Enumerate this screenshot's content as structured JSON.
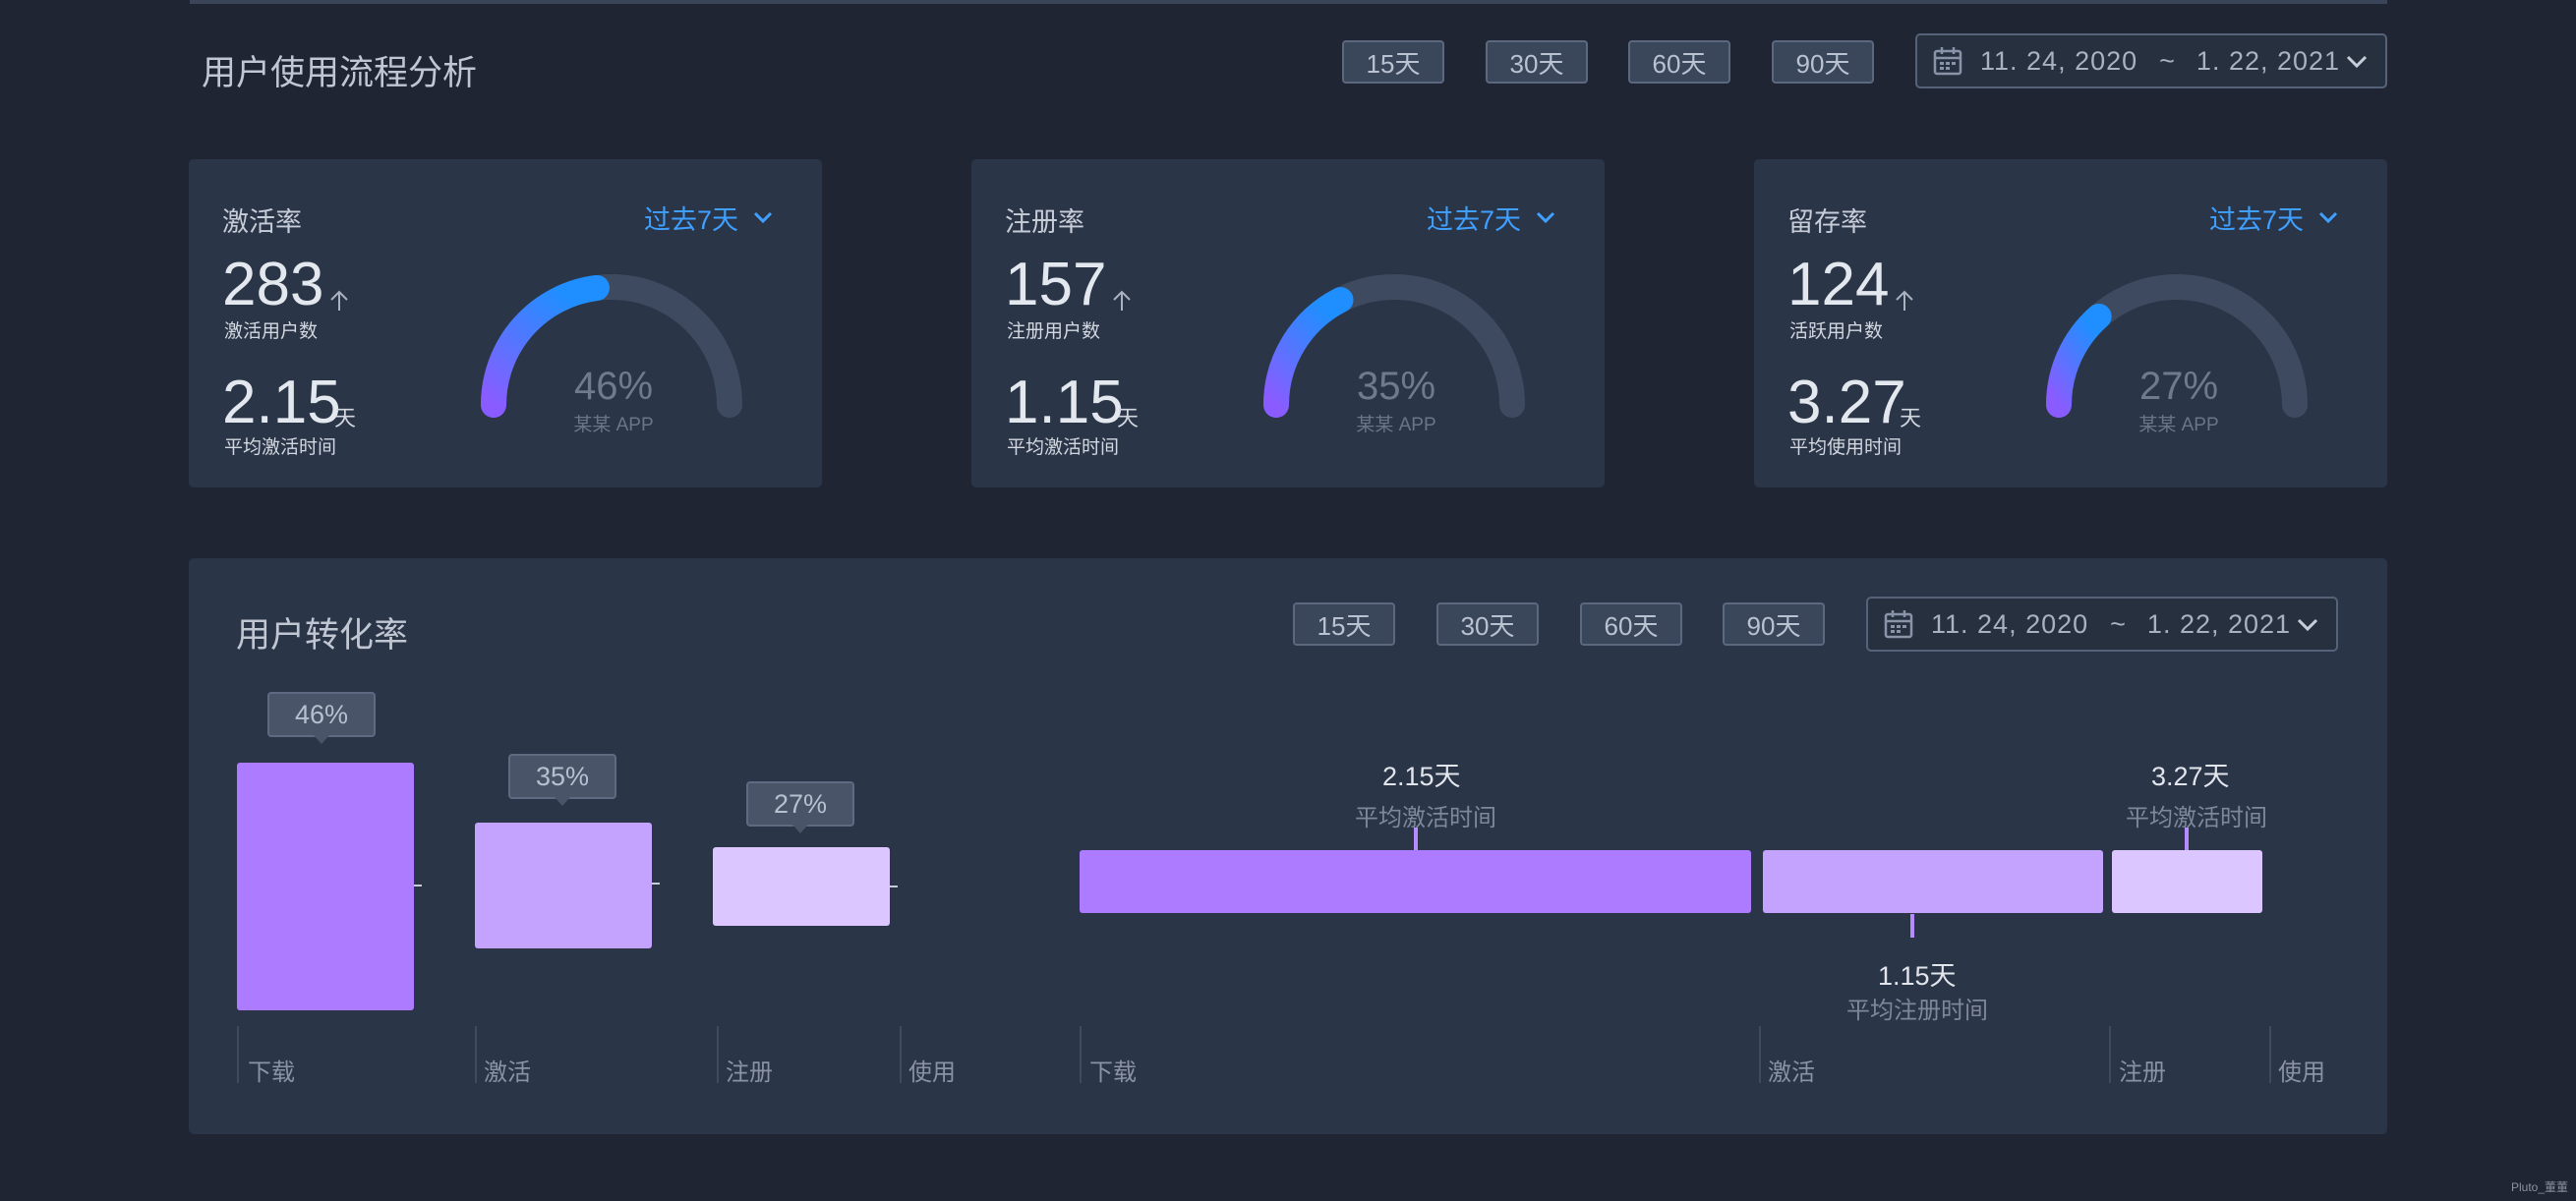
{
  "header": {
    "title": "用户使用流程分析",
    "range_buttons": [
      "15天",
      "30天",
      "60天",
      "90天"
    ],
    "date_range": {
      "start": "11. 24, 2020",
      "separator": "~",
      "end": "1. 22, 2021"
    }
  },
  "cards": [
    {
      "title": "激活率",
      "period": "过去7天",
      "value": "283",
      "value_label": "激活用户数",
      "time": "2.15",
      "time_unit": "天",
      "time_label": "平均激活时间",
      "gauge_percent": "46%",
      "gauge_fraction": 0.46,
      "gauge_caption": "某某 APP"
    },
    {
      "title": "注册率",
      "period": "过去7天",
      "value": "157",
      "value_label": "注册用户数",
      "time": "1.15",
      "time_unit": "天",
      "time_label": "平均激活时间",
      "gauge_percent": "35%",
      "gauge_fraction": 0.35,
      "gauge_caption": "某某 APP"
    },
    {
      "title": "留存率",
      "period": "过去7天",
      "value": "124",
      "value_label": "活跃用户数",
      "time": "3.27",
      "time_unit": "天",
      "time_label": "平均使用时间",
      "gauge_percent": "27%",
      "gauge_fraction": 0.27,
      "gauge_caption": "某某 APP"
    }
  ],
  "conversion": {
    "title": "用户转化率",
    "range_buttons": [
      "15天",
      "30天",
      "60天",
      "90天"
    ],
    "date_range": {
      "start": "11. 24, 2020",
      "separator": "~",
      "end": "1. 22, 2021"
    },
    "funnel": [
      {
        "label": "46%",
        "fraction": 0.46
      },
      {
        "label": "35%",
        "fraction": 0.35
      },
      {
        "label": "27%",
        "fraction": 0.27
      }
    ],
    "funnel_axis": [
      "下载",
      "激活",
      "注册",
      "使用"
    ],
    "timeline_axis": [
      "下载",
      "激活",
      "注册",
      "使用"
    ],
    "timeline_notes": [
      {
        "value": "2.15天",
        "caption": "平均激活时间"
      },
      {
        "value": "1.15天",
        "caption": "平均注册时间"
      },
      {
        "value": "3.27天",
        "caption": "平均激活时间"
      }
    ]
  },
  "colors": {
    "background": "#1f2533",
    "panel": "#2b3548",
    "accent_blue": "#3fa0ff",
    "funnel_1": "#ac7bff",
    "funnel_2": "#c4a3ff",
    "funnel_3": "#dcc6ff"
  },
  "icons": {
    "calendar": "calendar-icon",
    "chevron": "chevron-down-icon",
    "trend": "arrow-up-icon"
  },
  "watermark": "Pluto_董董"
}
